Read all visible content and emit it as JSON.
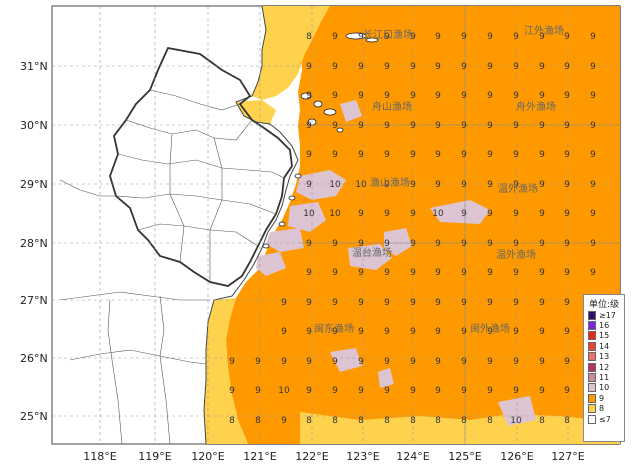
{
  "lat_labels": [
    "31°N",
    "30°N",
    "29°N",
    "28°N",
    "27°N",
    "26°N",
    "25°N"
  ],
  "lon_labels": [
    "118°E",
    "119°E",
    "120°E",
    "121°E",
    "122°E",
    "123°E",
    "124°E",
    "125°E",
    "126°E",
    "127°E"
  ],
  "zones": [
    {
      "name": "长江口渔场"
    },
    {
      "name": "江外渔场"
    },
    {
      "name": "舟山渔场"
    },
    {
      "name": "舟外渔场"
    },
    {
      "name": "渔山渔场"
    },
    {
      "name": "温外渔场"
    },
    {
      "name": "温台渔场"
    },
    {
      "name": "温外渔场"
    },
    {
      "name": "闽东渔场"
    },
    {
      "name": "闽外渔场"
    }
  ],
  "legend": {
    "title": "单位:级",
    "items": [
      {
        "label": "≥17",
        "color": "#2b0f6b"
      },
      {
        "label": "16",
        "color": "#7e22e6"
      },
      {
        "label": "15",
        "color": "#e6271e"
      },
      {
        "label": "14",
        "color": "#e8463a"
      },
      {
        "label": "13",
        "color": "#ef6f6a"
      },
      {
        "label": "12",
        "color": "#b8336b"
      },
      {
        "label": "11",
        "color": "#c88aa0"
      },
      {
        "label": "10",
        "color": "#dcc4d2"
      },
      {
        "label": "9",
        "color": "#ff9900"
      },
      {
        "label": "8",
        "color": "#ffd24d"
      },
      {
        "label": "≤7",
        "color": "#ffffff"
      }
    ]
  },
  "colors": {
    "level9": "#ff9900",
    "level8": "#ffd24d",
    "level10": "#dcc4d2",
    "land": "#ffffff",
    "border": "#444444"
  }
}
